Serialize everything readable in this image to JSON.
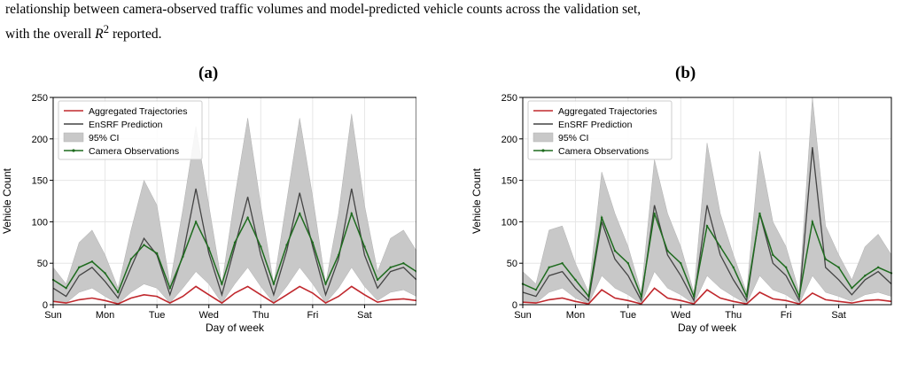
{
  "caption": {
    "line1": "relationship between camera-observed traffic volumes and model-predicted vehicle counts across the validation set,",
    "line2_prefix": "with the overall ",
    "line2_r": "R",
    "line2_sup": "2",
    "line2_suffix": " reported."
  },
  "chart_data": [
    {
      "panel": "(a)",
      "type": "line",
      "xlabel": "Day of week",
      "ylabel": "Vehicle Count",
      "ylim": [
        0,
        250
      ],
      "yticks": [
        0,
        50,
        100,
        150,
        200,
        250
      ],
      "x_ticks": [
        "Sun",
        "Mon",
        "Tue",
        "Wed",
        "Thu",
        "Fri",
        "Sat"
      ],
      "grid": true,
      "legend_position": "top-left",
      "legend": [
        "Aggregated Trajectories",
        "EnSRF Prediction",
        "95% CI",
        "Camera Observations"
      ],
      "colors": {
        "trajectories": "#c0282d",
        "ensrf": "#444444",
        "ci": "#c8c8c8",
        "camera": "#1e6b1e"
      },
      "x": [
        0,
        0.25,
        0.5,
        0.75,
        1,
        1.25,
        1.5,
        1.75,
        2,
        2.25,
        2.5,
        2.75,
        3,
        3.25,
        3.5,
        3.75,
        4,
        4.25,
        4.5,
        4.75,
        5,
        5.25,
        5.5,
        5.75,
        6,
        6.25,
        6.5,
        6.75,
        7
      ],
      "series": [
        {
          "name": "Camera Observations",
          "values": [
            30,
            20,
            45,
            52,
            38,
            15,
            55,
            72,
            62,
            20,
            58,
            100,
            68,
            25,
            75,
            105,
            70,
            25,
            72,
            110,
            75,
            25,
            60,
            110,
            70,
            30,
            45,
            50,
            40
          ]
        },
        {
          "name": "EnSRF Prediction",
          "values": [
            20,
            10,
            35,
            45,
            28,
            8,
            45,
            80,
            60,
            12,
            60,
            140,
            62,
            12,
            70,
            130,
            60,
            12,
            65,
            135,
            70,
            12,
            55,
            140,
            60,
            20,
            40,
            45,
            30
          ]
        },
        {
          "name": "Aggregated Trajectories",
          "values": [
            4,
            2,
            6,
            8,
            5,
            1,
            8,
            12,
            10,
            2,
            10,
            22,
            12,
            2,
            14,
            22,
            12,
            2,
            12,
            22,
            14,
            2,
            10,
            22,
            12,
            3,
            6,
            7,
            5
          ]
        },
        {
          "name": "95% CI upper",
          "values": [
            45,
            25,
            75,
            90,
            60,
            20,
            90,
            150,
            120,
            25,
            115,
            215,
            120,
            25,
            130,
            225,
            120,
            25,
            125,
            225,
            130,
            25,
            110,
            230,
            120,
            40,
            80,
            90,
            65
          ]
        },
        {
          "name": "95% CI lower",
          "values": [
            5,
            2,
            15,
            20,
            10,
            1,
            15,
            25,
            20,
            2,
            20,
            40,
            25,
            2,
            25,
            45,
            22,
            2,
            22,
            45,
            25,
            2,
            20,
            45,
            22,
            5,
            15,
            18,
            10
          ]
        }
      ]
    },
    {
      "panel": "(b)",
      "type": "line",
      "xlabel": "Day of week",
      "ylabel": "Vehicle Count",
      "ylim": [
        0,
        250
      ],
      "yticks": [
        0,
        50,
        100,
        150,
        200,
        250
      ],
      "x_ticks": [
        "Sun",
        "Mon",
        "Tue",
        "Wed",
        "Thu",
        "Fri",
        "Sat"
      ],
      "grid": true,
      "legend_position": "top-left",
      "legend": [
        "Aggregated Trajectories",
        "EnSRF Prediction",
        "95% CI",
        "Camera Observations"
      ],
      "colors": {
        "trajectories": "#c0282d",
        "ensrf": "#444444",
        "ci": "#c8c8c8",
        "camera": "#1e6b1e"
      },
      "x": [
        0,
        0.25,
        0.5,
        0.75,
        1,
        1.25,
        1.5,
        1.75,
        2,
        2.25,
        2.5,
        2.75,
        3,
        3.25,
        3.5,
        3.75,
        4,
        4.25,
        4.5,
        4.75,
        5,
        5.25,
        5.5,
        5.75,
        6,
        6.25,
        6.5,
        6.75,
        7
      ],
      "series": [
        {
          "name": "Camera Observations",
          "values": [
            25,
            18,
            45,
            50,
            30,
            10,
            105,
            65,
            50,
            10,
            110,
            65,
            50,
            10,
            95,
            70,
            45,
            10,
            110,
            60,
            45,
            10,
            100,
            55,
            45,
            20,
            35,
            45,
            38
          ]
        },
        {
          "name": "EnSRF Prediction",
          "values": [
            15,
            10,
            35,
            40,
            20,
            5,
            100,
            55,
            35,
            5,
            120,
            60,
            35,
            5,
            120,
            60,
            30,
            5,
            110,
            50,
            35,
            5,
            190,
            45,
            30,
            12,
            30,
            40,
            25
          ]
        },
        {
          "name": "Aggregated Trajectories",
          "values": [
            3,
            2,
            6,
            8,
            4,
            1,
            18,
            8,
            5,
            1,
            20,
            8,
            5,
            1,
            18,
            8,
            4,
            1,
            15,
            7,
            5,
            1,
            14,
            6,
            4,
            2,
            5,
            6,
            4
          ]
        },
        {
          "name": "95% CI upper",
          "values": [
            40,
            25,
            90,
            95,
            50,
            15,
            160,
            110,
            70,
            15,
            175,
            110,
            70,
            15,
            195,
            110,
            60,
            15,
            185,
            100,
            70,
            15,
            250,
            95,
            60,
            30,
            70,
            85,
            60
          ]
        },
        {
          "name": "95% CI lower",
          "values": [
            3,
            2,
            15,
            20,
            8,
            1,
            35,
            20,
            12,
            1,
            40,
            20,
            12,
            1,
            35,
            20,
            10,
            1,
            35,
            18,
            12,
            1,
            35,
            15,
            10,
            4,
            12,
            15,
            10
          ]
        }
      ]
    }
  ]
}
